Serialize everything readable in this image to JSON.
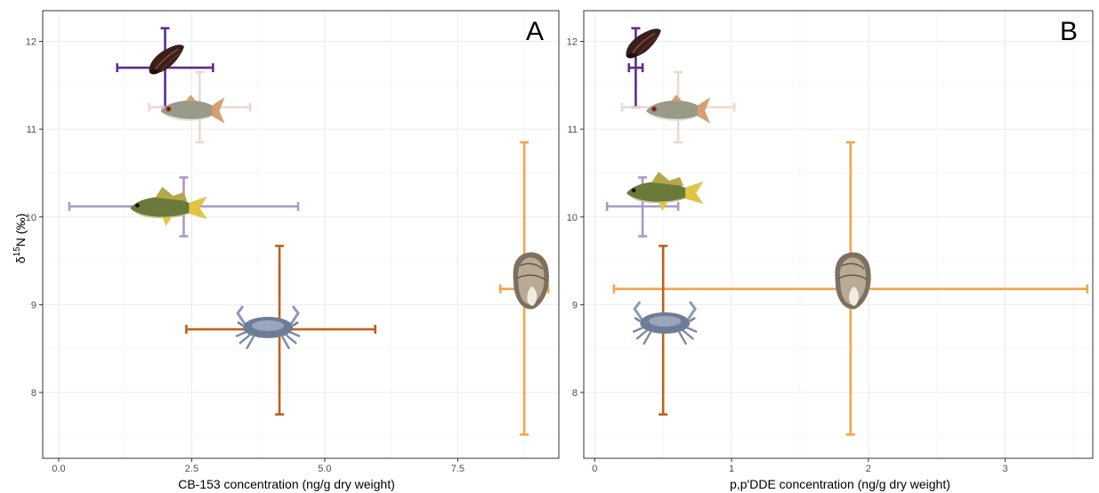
{
  "chart_data": [
    {
      "type": "scatter",
      "panel_label": "A",
      "xlabel": "CB-153 concentration (ng/g dry weight)",
      "ylabel_main": "δ",
      "ylabel_sup": "15",
      "ylabel_rest": "N (‰)",
      "xlim": [
        -0.3,
        9.4
      ],
      "ylim": [
        7.25,
        12.35
      ],
      "xticks": [
        0,
        2.5,
        5,
        7.5
      ],
      "xtick_labels": [
        "0.0",
        "2.5",
        "5.0",
        "7.5"
      ],
      "yticks": [
        8,
        9,
        10,
        11,
        12
      ],
      "ytick_labels": [
        "8",
        "9",
        "10",
        "11",
        "12"
      ],
      "grid": true,
      "series": [
        {
          "icon": "whelk",
          "color": "#5b2c8f",
          "x": 2.0,
          "y": 11.7,
          "x_err": [
            1.1,
            2.9
          ],
          "y_err": [
            11.25,
            12.15
          ]
        },
        {
          "icon": "menhaden-fish",
          "color": "#ecd9cf",
          "x": 2.65,
          "y": 11.25,
          "x_err": [
            1.7,
            3.6
          ],
          "y_err": [
            10.85,
            11.65
          ]
        },
        {
          "icon": "croaker-fish",
          "color": "#a89cc8",
          "x": 2.35,
          "y": 10.12,
          "x_err": [
            0.2,
            4.5
          ],
          "y_err": [
            9.78,
            10.45
          ]
        },
        {
          "icon": "oyster",
          "color": "#f5a34a",
          "x": 8.75,
          "y": 9.18,
          "x_err": [
            8.3,
            9.2
          ],
          "y_err": [
            7.52,
            10.85
          ]
        },
        {
          "icon": "blue-crab",
          "color": "#c0601a",
          "x": 4.15,
          "y": 8.72,
          "x_err": [
            2.4,
            5.95
          ],
          "y_err": [
            7.75,
            9.67
          ]
        }
      ]
    },
    {
      "type": "scatter",
      "panel_label": "B",
      "xlabel": "p,p'DDE concentration (ng/g dry weight)",
      "xlim": [
        -0.08,
        3.64
      ],
      "ylim": [
        7.25,
        12.35
      ],
      "xticks": [
        0,
        1,
        2,
        3
      ],
      "xtick_labels": [
        "0",
        "1",
        "2",
        "3"
      ],
      "yticks": [
        8,
        9,
        10,
        11,
        12
      ],
      "ytick_labels": [
        "8",
        "9",
        "10",
        "11",
        "12"
      ],
      "grid": true,
      "series": [
        {
          "icon": "whelk",
          "color": "#5b2c8f",
          "x": 0.3,
          "y": 11.7,
          "x_err": [
            0.25,
            0.35
          ],
          "y_err": [
            11.25,
            12.15
          ]
        },
        {
          "icon": "menhaden-fish",
          "color": "#ecd9cf",
          "x": 0.61,
          "y": 11.25,
          "x_err": [
            0.2,
            1.02
          ],
          "y_err": [
            10.85,
            11.65
          ]
        },
        {
          "icon": "croaker-fish",
          "color": "#a89cc8",
          "x": 0.35,
          "y": 10.12,
          "x_err": [
            0.09,
            0.61
          ],
          "y_err": [
            9.78,
            10.45
          ]
        },
        {
          "icon": "oyster",
          "color": "#f5a34a",
          "x": 1.87,
          "y": 9.18,
          "x_err": [
            0.14,
            3.6
          ],
          "y_err": [
            7.52,
            10.85
          ]
        },
        {
          "icon": "blue-crab",
          "color": "#c0601a",
          "x": 0.5,
          "y": 8.72,
          "x_err": [
            0.5,
            0.5
          ],
          "y_err": [
            7.75,
            9.67
          ]
        }
      ]
    }
  ]
}
